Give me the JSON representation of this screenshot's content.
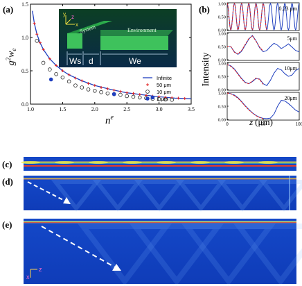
{
  "panel_labels": {
    "a": "(a)",
    "b": "(b)",
    "c": "(c)",
    "d": "(d)",
    "e": "(e)"
  },
  "inset": {
    "system_label": "System",
    "environment_label": "Environment",
    "ws_label": "Ws",
    "d_label": "d",
    "we_label": "We",
    "axis_y": "y",
    "axis_z": "z",
    "axis_x": "x"
  },
  "field_axes": {
    "x": "x",
    "z": "z"
  },
  "chart_data": [
    {
      "type": "scatter",
      "panel": "a",
      "title": "",
      "xlabel": "n",
      "xlabel_sup": "e",
      "ylabel": "g",
      "ylabel_sup": "2",
      "ylabel_tail": "w",
      "ylabel_sub": "e",
      "xlim": [
        1.0,
        3.5
      ],
      "ylim": [
        0.0,
        1.5
      ],
      "xticks": [
        "1.0",
        "1.5",
        "2.0",
        "2.5",
        "3.0",
        "3.5"
      ],
      "yticks": [
        "0.0",
        "0.5",
        "1.0",
        "1.5"
      ],
      "legend_position": "right",
      "series": [
        {
          "name": "Infinite",
          "style": "line",
          "color": "#1f3fbf",
          "x": [
            1.03,
            1.06,
            1.1,
            1.15,
            1.2,
            1.3,
            1.4,
            1.5,
            1.6,
            1.8,
            2.0,
            2.25,
            2.5,
            2.75,
            3.0,
            3.25,
            3.5
          ],
          "y": [
            1.4,
            1.21,
            1.05,
            0.92,
            0.82,
            0.68,
            0.58,
            0.5,
            0.44,
            0.35,
            0.28,
            0.22,
            0.17,
            0.14,
            0.11,
            0.09,
            0.08
          ]
        },
        {
          "name": "50 μm",
          "style": "plus",
          "color": "#e02020",
          "x": [
            1.06,
            1.1,
            1.15,
            1.2,
            1.3,
            1.4,
            1.5,
            1.6,
            1.7,
            1.8,
            1.9,
            2.0,
            2.1,
            2.2,
            2.3,
            2.4,
            2.5,
            2.6,
            2.7,
            2.8,
            2.9,
            3.0,
            3.1,
            3.2,
            3.3,
            3.4
          ],
          "y": [
            1.21,
            1.05,
            0.92,
            0.82,
            0.68,
            0.58,
            0.5,
            0.44,
            0.39,
            0.35,
            0.31,
            0.28,
            0.25,
            0.23,
            0.21,
            0.19,
            0.17,
            0.16,
            0.145,
            0.13,
            0.12,
            0.11,
            0.1,
            0.095,
            0.09,
            0.085
          ]
        },
        {
          "name": "10 μm",
          "style": "open-circle",
          "color": "#222222",
          "x": [
            1.1,
            1.2,
            1.3,
            1.4,
            1.5,
            1.6,
            1.7,
            1.8,
            1.9,
            2.0,
            2.1,
            2.2,
            2.3,
            2.4,
            2.5,
            2.6,
            2.7,
            2.8,
            2.9,
            3.0,
            3.1,
            3.2
          ],
          "y": [
            0.95,
            0.62,
            0.52,
            0.45,
            0.4,
            0.34,
            0.28,
            0.25,
            0.22,
            0.2,
            0.18,
            0.16,
            0.15,
            0.14,
            0.12,
            0.11,
            0.1,
            0.09,
            0.08,
            0.075,
            0.07,
            0.065
          ]
        },
        {
          "name": "1 μm",
          "style": "filled-circle",
          "color": "#1f3fbf",
          "x": [
            1.32,
            2.3,
            2.9
          ],
          "y": [
            0.37,
            0.15,
            0.1
          ]
        }
      ]
    },
    {
      "type": "line",
      "panel": "b",
      "xlabel": "z",
      "xlabel_unit": "(μm)",
      "ylabel": "Intensity",
      "xlim": [
        0,
        100
      ],
      "xticks": [
        "0",
        "50",
        "100"
      ],
      "subplots": [
        {
          "label": "0.23 μm",
          "yticks": [
            "0.00",
            "0.50",
            "1.00"
          ],
          "ylim": [
            0,
            1.0
          ],
          "series": [
            {
              "name": "blue",
              "color": "#1f3fbf",
              "x": [
                0,
                100
              ],
              "y": [
                0.5,
                0.5
              ],
              "kind": "cos",
              "periods": 10
            },
            {
              "name": "red",
              "color": "#e02020",
              "x": [
                0,
                55
              ],
              "y": [
                0.5,
                0.5
              ],
              "kind": "cos",
              "periods": 10
            }
          ]
        },
        {
          "label": "5μm",
          "yticks": [
            "0.00",
            "0.50",
            "1.00"
          ],
          "ylim": [
            0,
            1.0
          ],
          "series": [
            {
              "name": "blue",
              "color": "#1f3fbf",
              "x": [
                0,
                5,
                10,
                15,
                20,
                25,
                30,
                35,
                40,
                45,
                50,
                55,
                60,
                65,
                70,
                75,
                80,
                85,
                90,
                95,
                100
              ],
              "y": [
                0.5,
                0.5,
                0.3,
                0.2,
                0.32,
                0.55,
                0.78,
                0.92,
                0.72,
                0.45,
                0.3,
                0.35,
                0.5,
                0.62,
                0.55,
                0.42,
                0.5,
                0.6,
                0.48,
                0.35,
                0.3
              ]
            },
            {
              "name": "red",
              "color": "#e02020",
              "x": [
                0,
                5,
                10,
                15,
                20,
                25,
                30,
                35,
                40,
                45,
                50
              ],
              "y": [
                0.5,
                0.5,
                0.28,
                0.22,
                0.35,
                0.58,
                0.8,
                0.9,
                0.7,
                0.48,
                0.32
              ]
            }
          ]
        },
        {
          "label": "10μm",
          "yticks": [
            "0.00",
            "0.50",
            "1.00"
          ],
          "ylim": [
            0,
            1.0
          ],
          "series": [
            {
              "name": "blue",
              "color": "#1f3fbf",
              "x": [
                0,
                5,
                10,
                15,
                20,
                25,
                30,
                35,
                40,
                45,
                50,
                55,
                60,
                65,
                70,
                75,
                80,
                85,
                90,
                95,
                100
              ],
              "y": [
                0.95,
                0.9,
                0.78,
                0.6,
                0.42,
                0.28,
                0.22,
                0.3,
                0.42,
                0.4,
                0.22,
                0.15,
                0.35,
                0.62,
                0.8,
                0.75,
                0.6,
                0.5,
                0.55,
                0.72,
                0.8
              ]
            },
            {
              "name": "red",
              "color": "#e02020",
              "x": [
                0,
                5,
                10,
                15,
                20,
                25,
                30,
                35,
                40,
                45,
                50
              ],
              "y": [
                0.95,
                0.88,
                0.76,
                0.58,
                0.4,
                0.26,
                0.22,
                0.32,
                0.44,
                0.38,
                0.2
              ]
            }
          ]
        },
        {
          "label": "20μm",
          "yticks": [
            "0.00",
            "0.50",
            "1.00"
          ],
          "ylim": [
            0,
            1.0
          ],
          "series": [
            {
              "name": "blue",
              "color": "#1f3fbf",
              "x": [
                0,
                5,
                10,
                15,
                20,
                25,
                30,
                35,
                40,
                45,
                50,
                55,
                60,
                65,
                70,
                75,
                80,
                85,
                90,
                95,
                100
              ],
              "y": [
                1.0,
                0.98,
                0.92,
                0.82,
                0.68,
                0.52,
                0.38,
                0.25,
                0.15,
                0.08,
                0.04,
                0.03,
                0.05,
                0.2,
                0.5,
                0.72,
                0.7,
                0.6,
                0.48,
                0.35,
                0.28
              ]
            },
            {
              "name": "red",
              "color": "#e02020",
              "x": [
                0,
                5,
                10,
                15,
                20,
                25,
                30,
                35,
                40,
                45,
                50
              ],
              "y": [
                1.0,
                0.97,
                0.9,
                0.8,
                0.66,
                0.5,
                0.36,
                0.24,
                0.14,
                0.07,
                0.03
              ]
            }
          ]
        }
      ]
    }
  ]
}
